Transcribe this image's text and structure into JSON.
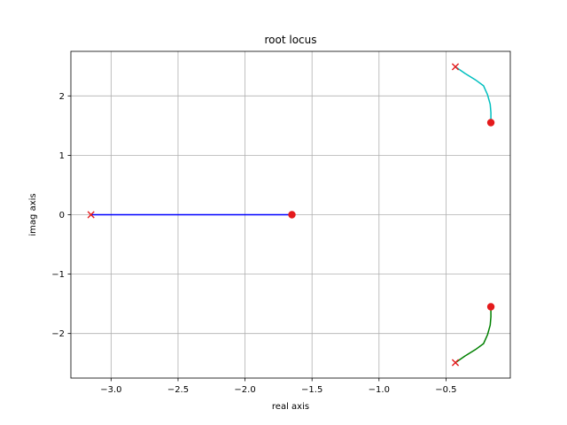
{
  "chart_data": {
    "type": "line",
    "title": "root locus",
    "xlabel": "real axis",
    "ylabel": "imag axis",
    "xlim": [
      -3.3,
      -0.02
    ],
    "ylim": [
      -2.75,
      2.75
    ],
    "grid": true,
    "xticks": [
      -3.0,
      -2.5,
      -2.0,
      -1.5,
      -1.0,
      -0.5
    ],
    "xtick_labels": [
      "−3.0",
      "−2.5",
      "−2.0",
      "−1.5",
      "−1.0",
      "−0.5"
    ],
    "yticks": [
      2,
      1,
      0,
      -1,
      -2
    ],
    "ytick_labels": [
      "2",
      "1",
      "0",
      "−1",
      "−2"
    ],
    "series": [
      {
        "color": "#0000ff",
        "points": [
          [
            -3.15,
            0
          ],
          [
            -2.5,
            0
          ],
          [
            -2.0,
            0
          ],
          [
            -1.65,
            0
          ]
        ]
      },
      {
        "color": "#00bfbf",
        "points": [
          [
            -0.43,
            2.49
          ],
          [
            -0.36,
            2.38
          ],
          [
            -0.28,
            2.27
          ],
          [
            -0.22,
            2.17
          ],
          [
            -0.19,
            2.02
          ],
          [
            -0.17,
            1.86
          ],
          [
            -0.165,
            1.72
          ],
          [
            -0.165,
            1.55
          ]
        ]
      },
      {
        "color": "#008000",
        "points": [
          [
            -0.43,
            -2.49
          ],
          [
            -0.36,
            -2.38
          ],
          [
            -0.28,
            -2.27
          ],
          [
            -0.22,
            -2.17
          ],
          [
            -0.19,
            -2.02
          ],
          [
            -0.17,
            -1.86
          ],
          [
            -0.165,
            -1.72
          ],
          [
            -0.165,
            -1.55
          ]
        ]
      }
    ],
    "poles": [
      [
        -3.15,
        0
      ],
      [
        -0.43,
        2.49
      ],
      [
        -0.43,
        -2.49
      ]
    ],
    "zeros": [
      [
        -1.65,
        0
      ],
      [
        -0.165,
        1.55
      ],
      [
        -0.165,
        -1.55
      ]
    ],
    "marker_color": "#e41a1c"
  }
}
